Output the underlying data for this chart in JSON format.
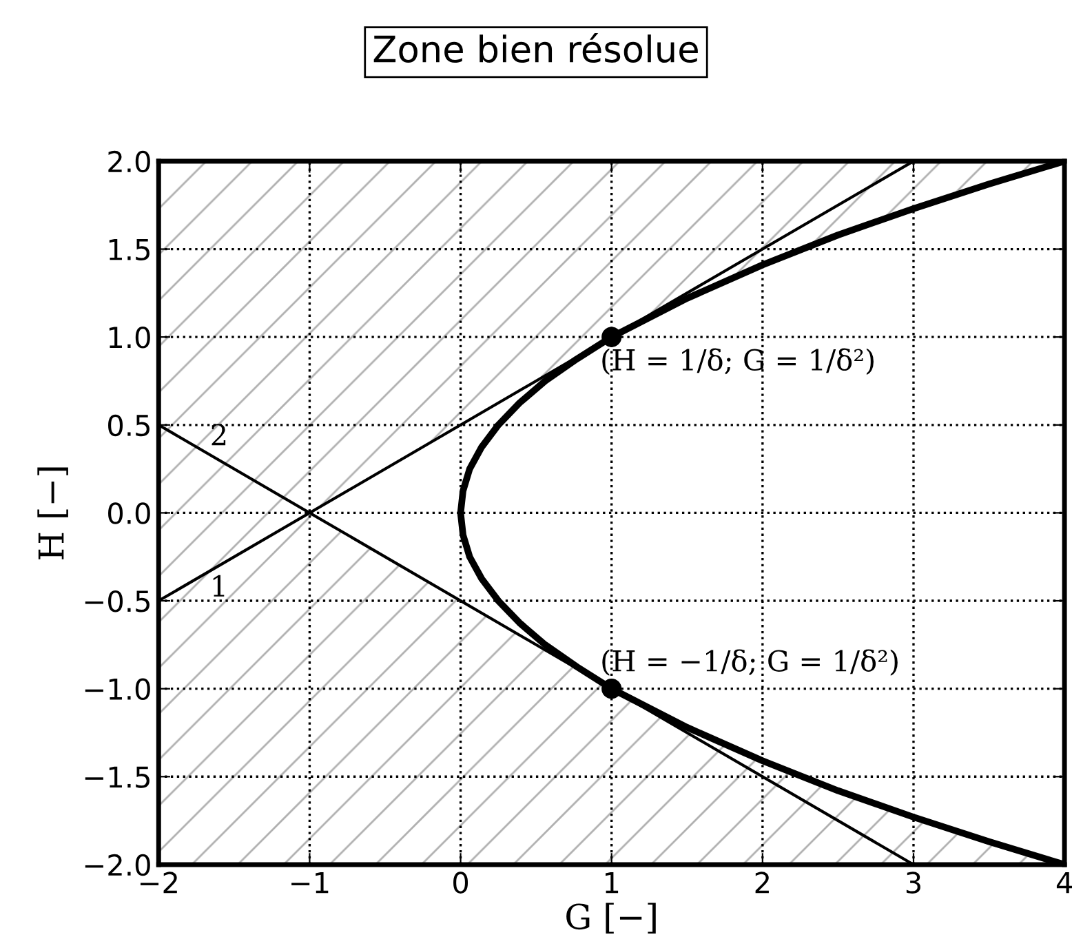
{
  "chart_data": {
    "type": "line",
    "title": "Zone bien résolue",
    "xlabel": "G [−]",
    "ylabel": "H [−]",
    "xlim": [
      -2,
      4
    ],
    "ylim": [
      -2,
      2
    ],
    "xticks": [
      {
        "value": -2,
        "label": "−2"
      },
      {
        "value": -1,
        "label": "−1"
      },
      0,
      1,
      2,
      3,
      4
    ],
    "yticks": [
      {
        "value": -2,
        "label": "−2.0"
      },
      {
        "value": -1.5,
        "label": "−1.5"
      },
      {
        "value": -1,
        "label": "−1.0"
      },
      {
        "value": -0.5,
        "label": "−0.5"
      },
      {
        "value": 0,
        "label": "0.0"
      },
      {
        "value": 0.5,
        "label": "0.5"
      },
      {
        "value": 1,
        "label": "1.0"
      },
      {
        "value": 1.5,
        "label": "1.5"
      },
      {
        "value": 2,
        "label": "2.0"
      }
    ],
    "grid": true,
    "line_style": "solid",
    "series": [
      {
        "type": "area",
        "color": "#b0b0b0",
        "x": [
          -2,
          4,
          3.5,
          3.0,
          2.5,
          2.0,
          1.5,
          1.0,
          -1.0,
          1.0,
          1.5,
          2.0,
          2.5,
          3.0,
          3.5,
          4,
          -2
        ],
        "values": [
          2,
          2,
          1.87,
          1.73,
          1.58,
          1.41,
          1.22,
          1.0,
          0.0,
          -1.0,
          -1.22,
          -1.41,
          -1.58,
          -1.73,
          -1.87,
          -2,
          -2
        ]
      },
      {
        "color": "#000000",
        "x": [
          4,
          3.5,
          3.0,
          2.5,
          2.0,
          1.5,
          1.0,
          0.77,
          0.56,
          0.39,
          0.25,
          0.14,
          0.06,
          0.016,
          0.0,
          0.016,
          0.06,
          0.14,
          0.25,
          0.39,
          0.56,
          0.77,
          1.0,
          1.5,
          2.0,
          2.5,
          3.0,
          3.5,
          4
        ],
        "values": [
          2,
          1.87,
          1.73,
          1.58,
          1.41,
          1.22,
          1.0,
          0.875,
          0.75,
          0.625,
          0.5,
          0.375,
          0.25,
          0.125,
          0.0,
          -0.125,
          -0.25,
          -0.375,
          -0.5,
          -0.625,
          -0.75,
          -0.875,
          -1.0,
          -1.22,
          -1.41,
          -1.58,
          -1.73,
          -1.87,
          -2
        ]
      },
      {
        "name": "1",
        "color": "#000000",
        "x": [
          -2,
          3
        ],
        "values": [
          -0.5,
          2
        ]
      },
      {
        "name": "2",
        "color": "#000000",
        "x": [
          -2,
          3
        ],
        "values": [
          0.5,
          -2
        ]
      },
      {
        "type": "scatter",
        "color": "#000000",
        "marker": "circle",
        "x": [
          1,
          1
        ],
        "values": [
          1,
          -1
        ]
      }
    ],
    "annotations": [
      {
        "text": "(H = 1/δ; G = 1/δ²)",
        "x": 1,
        "y": 1
      },
      {
        "text": "(H = −1/δ; G = 1/δ²)",
        "x": 1,
        "y": -1
      }
    ]
  }
}
